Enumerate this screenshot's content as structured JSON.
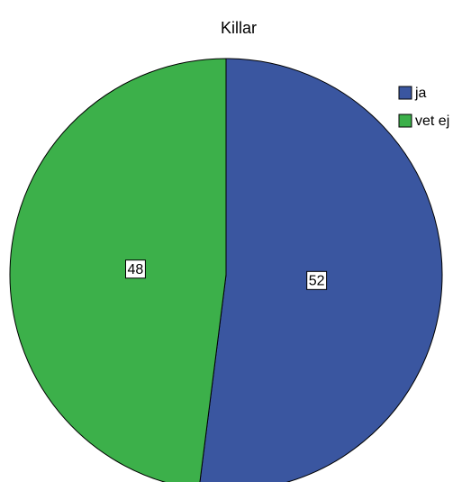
{
  "chart_data": {
    "type": "pie",
    "title": "Killar",
    "categories": [
      "ja",
      "vet ej"
    ],
    "values": [
      52,
      48
    ],
    "colors": [
      "#3a56a0",
      "#3cb04a"
    ],
    "legend": "top-right"
  }
}
